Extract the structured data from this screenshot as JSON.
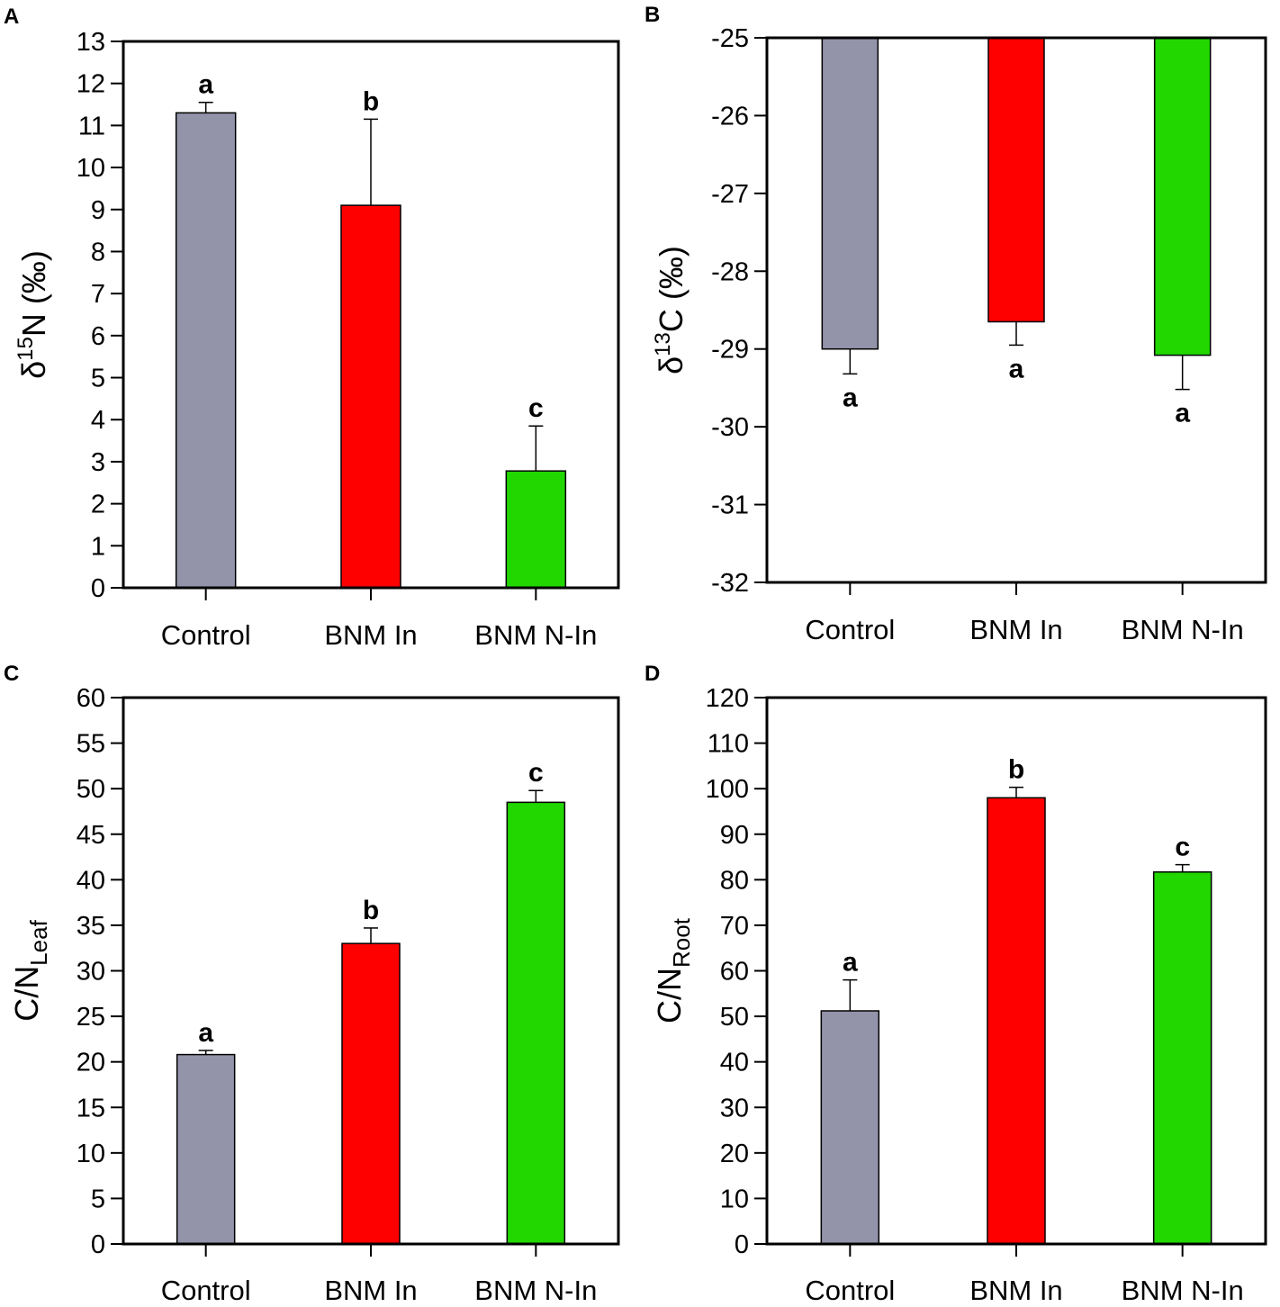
{
  "colors": {
    "Control": "#9393aa",
    "BNM In": "#ff0000",
    "BNM N-In": "#22d600",
    "axis": "#000000"
  },
  "chart_data": [
    {
      "panel": "A",
      "type": "bar",
      "categories": [
        "Control",
        "BNM In",
        "BNM N-In"
      ],
      "values": [
        11.3,
        9.1,
        2.78
      ],
      "errors": [
        0.25,
        2.05,
        1.07
      ],
      "error_direction": "up",
      "significance": [
        "a",
        "b",
        "c"
      ],
      "ylabel": {
        "prefix": "δ",
        "sup": "15",
        "main": "N (‰)",
        "sub": ""
      },
      "ylim": [
        0,
        13
      ],
      "yticks": [
        0,
        1,
        2,
        3,
        4,
        5,
        6,
        7,
        8,
        9,
        10,
        11,
        12,
        13
      ],
      "bar_baseline": 0
    },
    {
      "panel": "B",
      "type": "bar",
      "categories": [
        "Control",
        "BNM In",
        "BNM N-In"
      ],
      "values": [
        -29.0,
        -28.65,
        -29.08
      ],
      "errors": [
        0.32,
        0.3,
        0.44
      ],
      "error_direction": "down",
      "significance": [
        "a",
        "a",
        "a"
      ],
      "ylabel": {
        "prefix": "δ",
        "sup": "13",
        "main": "C (‰)",
        "sub": ""
      },
      "ylim": [
        -32,
        -25
      ],
      "yticks": [
        -32,
        -31,
        -30,
        -29,
        -28,
        -27,
        -26,
        -25
      ],
      "bar_baseline": -25
    },
    {
      "panel": "C",
      "type": "bar",
      "categories": [
        "Control",
        "BNM In",
        "BNM N-In"
      ],
      "values": [
        20.8,
        33.0,
        48.5
      ],
      "errors": [
        0.45,
        1.7,
        1.3
      ],
      "error_direction": "up",
      "significance": [
        "a",
        "b",
        "c"
      ],
      "ylabel": {
        "prefix": "",
        "sup": "",
        "main": "C/N",
        "sub": "Leaf"
      },
      "ylim": [
        0,
        60
      ],
      "yticks": [
        0,
        5,
        10,
        15,
        20,
        25,
        30,
        35,
        40,
        45,
        50,
        55,
        60
      ],
      "bar_baseline": 0
    },
    {
      "panel": "D",
      "type": "bar",
      "categories": [
        "Control",
        "BNM In",
        "BNM N-In"
      ],
      "values": [
        51.2,
        98.0,
        81.7
      ],
      "errors": [
        6.8,
        2.3,
        1.6
      ],
      "error_direction": "up",
      "significance": [
        "a",
        "b",
        "c"
      ],
      "ylabel": {
        "prefix": "",
        "sup": "",
        "main": "C/N",
        "sub": "Root"
      },
      "ylim": [
        0,
        120
      ],
      "yticks": [
        0,
        10,
        20,
        30,
        40,
        50,
        60,
        70,
        80,
        90,
        100,
        110,
        120
      ],
      "bar_baseline": 0
    }
  ]
}
